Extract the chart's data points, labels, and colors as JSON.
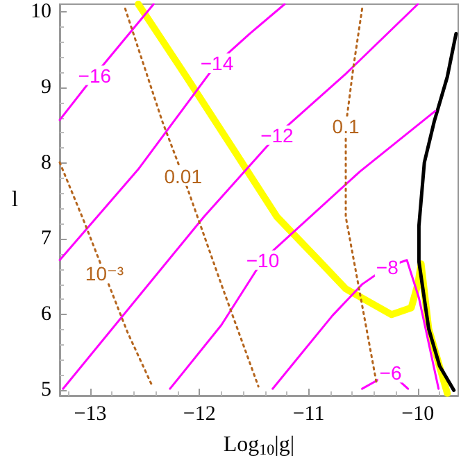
{
  "chart_data": {
    "type": "line",
    "xlabel": "Log$_{10}$|g|",
    "ylabel": "l",
    "xlim": [
      -13.28,
      -9.63
    ],
    "ylim": [
      4.93,
      10.1
    ],
    "xticks": [
      {
        "value": -13,
        "label": "−13"
      },
      {
        "value": -12,
        "label": "−12"
      },
      {
        "value": -11,
        "label": "−11"
      },
      {
        "value": -10,
        "label": "−10"
      }
    ],
    "yticks": [
      5,
      6,
      7,
      8,
      9,
      10
    ],
    "grid": false,
    "legend": false,
    "marker": "none",
    "series": [
      {
        "name": "−16",
        "color": "#ff00ff",
        "line_style": "solid",
        "x": [
          -13.28,
          -12.96,
          -12.42
        ],
        "values": [
          8.57,
          9.16,
          10.1
        ]
      },
      {
        "name": "−14",
        "color": "#ff00ff",
        "line_style": "solid",
        "x": [
          -13.28,
          -12.56,
          -11.84,
          -11.54,
          -11.22
        ],
        "values": [
          6.72,
          7.92,
          9.32,
          9.71,
          10.1
        ]
      },
      {
        "name": "−12",
        "color": "#ff00ff",
        "line_style": "solid",
        "x": [
          -13.25,
          -11.96,
          -11.29,
          -10.66,
          -10.0
        ],
        "values": [
          5.02,
          7.29,
          8.37,
          9.18,
          10.1
        ]
      },
      {
        "name": "−10",
        "color": "#ff00ff",
        "line_style": "solid",
        "x": [
          -12.27,
          -11.8,
          -11.42,
          -10.53,
          -9.84
        ],
        "values": [
          5.02,
          5.86,
          6.72,
          7.89,
          8.69
        ]
      },
      {
        "name": "−8",
        "color": "#ff00ff",
        "line_style": "solid",
        "x": [
          -11.33,
          -10.78,
          -10.51,
          -10.28,
          -10.1,
          -9.99,
          -9.81
        ],
        "values": [
          5.02,
          5.99,
          6.4,
          6.63,
          6.72,
          6.22,
          5.02
        ]
      },
      {
        "name": "−6",
        "color": "#ff00ff",
        "line_style": "solid",
        "x": [
          -10.51,
          -10.25,
          -10.09
        ],
        "values": [
          5.02,
          5.23,
          5.02
        ]
      },
      {
        "name": "10⁻³",
        "color": "#b5651d",
        "line_style": "dotted",
        "x": [
          -13.28,
          -13.06,
          -12.87,
          -12.66,
          -12.43
        ],
        "values": [
          8.01,
          7.24,
          6.54,
          5.77,
          5.05
        ]
      },
      {
        "name": "0.01",
        "color": "#b5651d",
        "line_style": "dotted",
        "x": [
          -12.68,
          -12.34,
          -12.15,
          -11.8,
          -11.46
        ],
        "values": [
          10.04,
          8.55,
          7.83,
          6.4,
          5.05
        ]
      },
      {
        "name": "0.1",
        "color": "#b5651d",
        "line_style": "dotted",
        "x": [
          -10.51,
          -10.59,
          -10.66,
          -10.66,
          -10.38
        ],
        "values": [
          10.04,
          9.27,
          8.49,
          7.29,
          5.11
        ]
      },
      {
        "color": "#ffff00",
        "line_style": "solid",
        "x": [
          -12.56,
          -12.11,
          -11.67,
          -11.29,
          -10.91,
          -10.66,
          -10.24,
          -10.06,
          -10.0,
          -9.97,
          -9.9,
          -9.73
        ],
        "values": [
          10.1,
          9.12,
          8.14,
          7.29,
          6.72,
          6.34,
          6.0,
          6.09,
          6.4,
          6.67,
          5.81,
          4.96
        ]
      },
      {
        "color": "#000000",
        "line_style": "solid",
        "x": [
          -9.65,
          -9.73,
          -9.85,
          -9.94,
          -9.99,
          -9.99,
          -9.9,
          -9.8,
          -9.67
        ],
        "values": [
          9.71,
          9.14,
          8.55,
          8.01,
          7.17,
          6.7,
          5.81,
          5.32,
          5.0
        ]
      }
    ]
  }
}
